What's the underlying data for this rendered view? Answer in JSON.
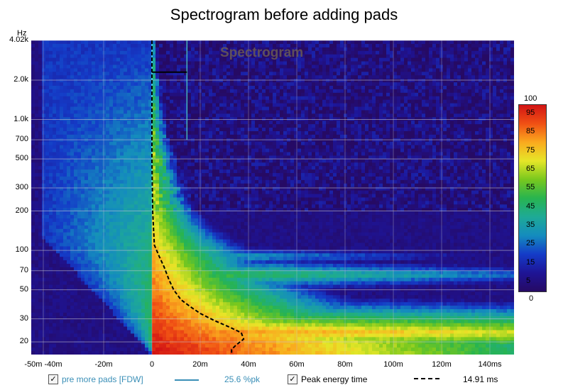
{
  "chart_data": {
    "type": "heatmap",
    "title": "Spectrogram before adding pads",
    "watermark": "Spectrogram",
    "y_unit": "Hz",
    "y_scale": "log",
    "ylim": [
      16,
      4020
    ],
    "xlim_ms": [
      -50,
      150
    ],
    "y_ticks": [
      {
        "label": "4.02k",
        "value": 4020
      },
      {
        "label": "2.0k",
        "value": 2000
      },
      {
        "label": "1.0k",
        "value": 1000
      },
      {
        "label": "700",
        "value": 700
      },
      {
        "label": "500",
        "value": 500
      },
      {
        "label": "300",
        "value": 300
      },
      {
        "label": "200",
        "value": 200
      },
      {
        "label": "100",
        "value": 100
      },
      {
        "label": "70",
        "value": 70
      },
      {
        "label": "50",
        "value": 50
      },
      {
        "label": "30",
        "value": 30
      },
      {
        "label": "20",
        "value": 20
      }
    ],
    "x_ticks": [
      {
        "label": "-50m -40m",
        "value": -45
      },
      {
        "label": "-20m",
        "value": -20
      },
      {
        "label": "0",
        "value": 0
      },
      {
        "label": "20m",
        "value": 20
      },
      {
        "label": "40m",
        "value": 40
      },
      {
        "label": "60m",
        "value": 60
      },
      {
        "label": "80m",
        "value": 80
      },
      {
        "label": "100m",
        "value": 100
      },
      {
        "label": "120m",
        "value": 120
      },
      {
        "label": "140ms",
        "value": 140
      }
    ],
    "colorbar": {
      "min_label": "0",
      "max_label": "100",
      "ticks": [
        "95",
        "85",
        "75",
        "65",
        "55",
        "45",
        "35",
        "25",
        "15",
        "5"
      ]
    },
    "peak_energy_curve": {
      "name": "Peak energy time",
      "points": [
        {
          "t": 0,
          "f": 4020
        },
        {
          "t": 0,
          "f": 500
        },
        {
          "t": 0.3,
          "f": 200
        },
        {
          "t": 1,
          "f": 110
        },
        {
          "t": 3,
          "f": 90
        },
        {
          "t": 5,
          "f": 75
        },
        {
          "t": 7,
          "f": 60
        },
        {
          "t": 9,
          "f": 50
        },
        {
          "t": 12,
          "f": 42
        },
        {
          "t": 16,
          "f": 37
        },
        {
          "t": 20,
          "f": 33
        },
        {
          "t": 26,
          "f": 29
        },
        {
          "t": 32,
          "f": 26
        },
        {
          "t": 37,
          "f": 23.5
        },
        {
          "t": 38,
          "f": 21
        },
        {
          "t": 35,
          "f": 19
        },
        {
          "t": 33,
          "f": 17.5
        },
        {
          "t": 33,
          "f": 16.5
        }
      ]
    },
    "marker_line": {
      "t1": 0,
      "t2": 14.5,
      "f": 2300
    },
    "colors": {
      "background": "#2a0c6a",
      "peak_curve": "#000000",
      "legend_series": "#3a8fb7"
    }
  },
  "legend": {
    "series_name": "pre more pads [FDW]",
    "series_value": "25.6 %pk",
    "peak_label": "Peak energy time",
    "peak_value": "14.91 ms",
    "check_glyph": "✓"
  }
}
